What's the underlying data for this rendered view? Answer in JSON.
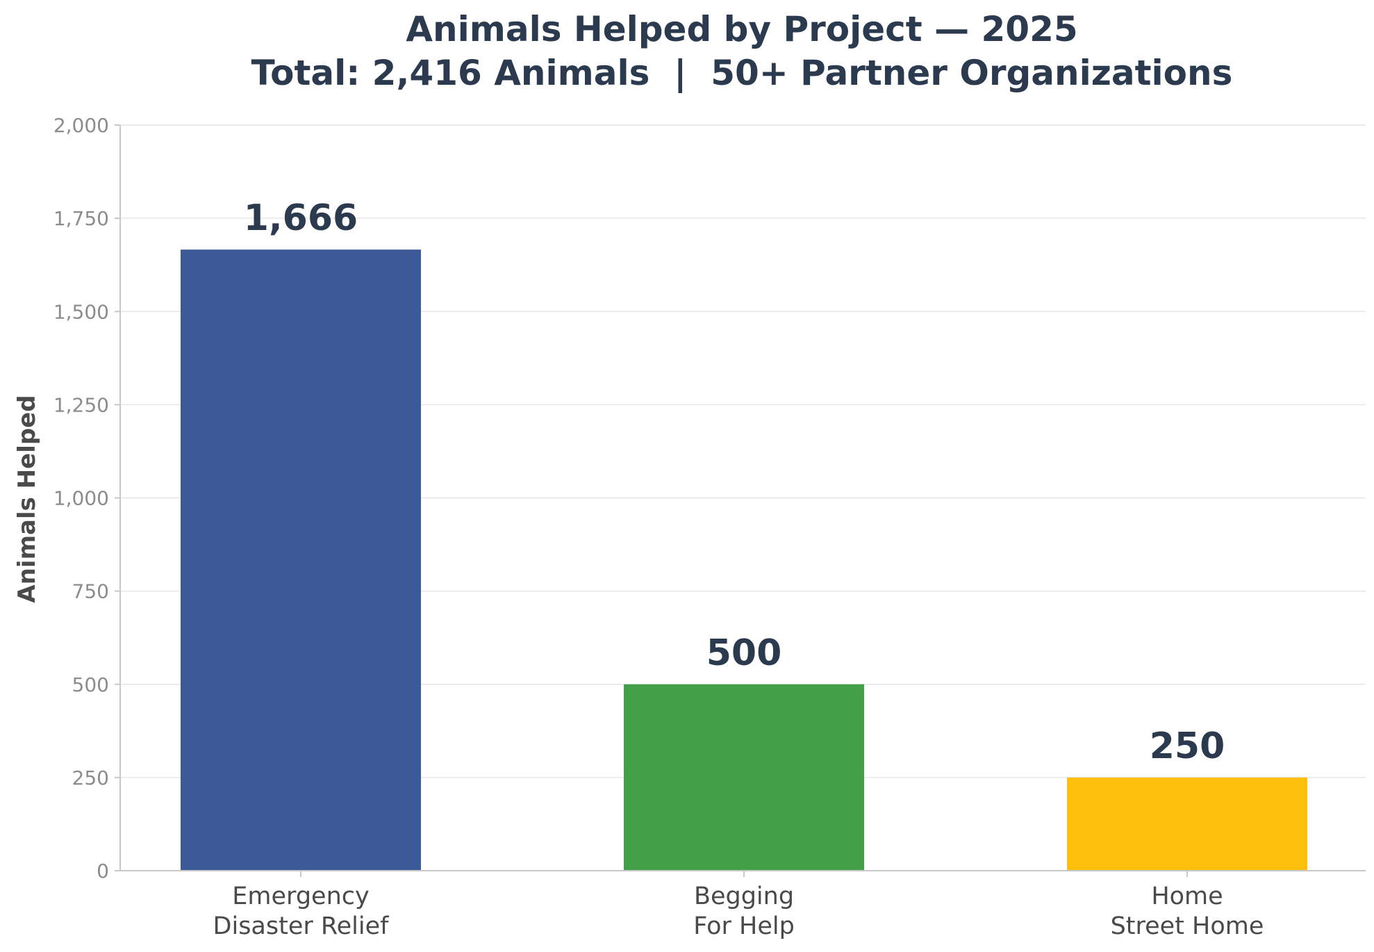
{
  "chart_data": {
    "type": "bar",
    "title": "Animals Helped by Project — 2025",
    "subtitle": "Total: 2,416 Animals  |  50+ Partner Organizations",
    "xlabel": "",
    "ylabel": "Animals Helped",
    "categories": [
      [
        "Emergency",
        "Disaster Relief"
      ],
      [
        "Begging",
        "For Help"
      ],
      [
        "Home",
        "Street Home"
      ]
    ],
    "values": [
      1666,
      500,
      250
    ],
    "value_labels": [
      "1,666",
      "500",
      "250"
    ],
    "colors": [
      "#3c5a98",
      "#43a047",
      "#fdbf0b"
    ],
    "ylim": [
      0,
      2000
    ],
    "yticks": [
      0,
      250,
      500,
      750,
      1000,
      1250,
      1500,
      1750,
      2000
    ],
    "ytick_labels": [
      "0",
      "250",
      "500",
      "750",
      "1,000",
      "1,250",
      "1,500",
      "1,750",
      "2,000"
    ],
    "grid": true,
    "legend": "none"
  }
}
